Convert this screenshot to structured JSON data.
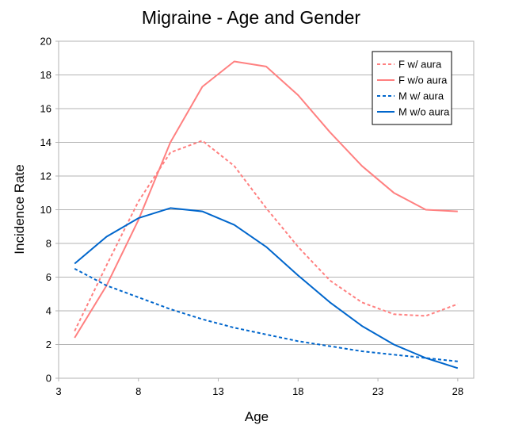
{
  "chart_data": {
    "type": "line",
    "title": "Migraine - Age and Gender",
    "xlabel": "Age",
    "ylabel": "Incidence Rate",
    "xlim": [
      3,
      29
    ],
    "ylim": [
      0,
      20
    ],
    "x_ticks": [
      3,
      8,
      13,
      18,
      23,
      28
    ],
    "y_ticks": [
      0,
      2,
      4,
      6,
      8,
      10,
      12,
      14,
      16,
      18,
      20
    ],
    "grid": "horizontal",
    "legend_position": "top-right",
    "series": [
      {
        "name": "F w/ aura",
        "color": "#ff8080",
        "style": "dashed",
        "x": [
          4,
          6,
          8,
          10,
          12,
          14,
          16,
          18,
          20,
          22,
          24,
          26,
          28
        ],
        "y": [
          2.8,
          6.7,
          10.5,
          13.4,
          14.1,
          12.6,
          10.1,
          7.8,
          5.8,
          4.5,
          3.8,
          3.7,
          4.4
        ]
      },
      {
        "name": "F w/o aura",
        "color": "#ff8080",
        "style": "solid",
        "x": [
          4,
          6,
          8,
          10,
          12,
          14,
          16,
          18,
          20,
          22,
          24,
          26,
          28
        ],
        "y": [
          2.4,
          5.5,
          9.4,
          14.0,
          17.3,
          18.8,
          18.5,
          16.8,
          14.6,
          12.6,
          11.0,
          10.0,
          9.9
        ]
      },
      {
        "name": "M w/ aura",
        "color": "#0066cc",
        "style": "dashed",
        "x": [
          4,
          6,
          8,
          10,
          12,
          14,
          16,
          18,
          20,
          22,
          24,
          26,
          28
        ],
        "y": [
          6.5,
          5.5,
          4.8,
          4.1,
          3.5,
          3.0,
          2.6,
          2.2,
          1.9,
          1.6,
          1.4,
          1.2,
          1.0
        ]
      },
      {
        "name": "M w/o aura",
        "color": "#0066cc",
        "style": "solid",
        "x": [
          4,
          6,
          8,
          10,
          12,
          14,
          16,
          18,
          20,
          22,
          24,
          26,
          28
        ],
        "y": [
          6.8,
          8.4,
          9.5,
          10.1,
          9.9,
          9.1,
          7.8,
          6.1,
          4.5,
          3.1,
          2.0,
          1.2,
          0.6
        ]
      }
    ]
  }
}
